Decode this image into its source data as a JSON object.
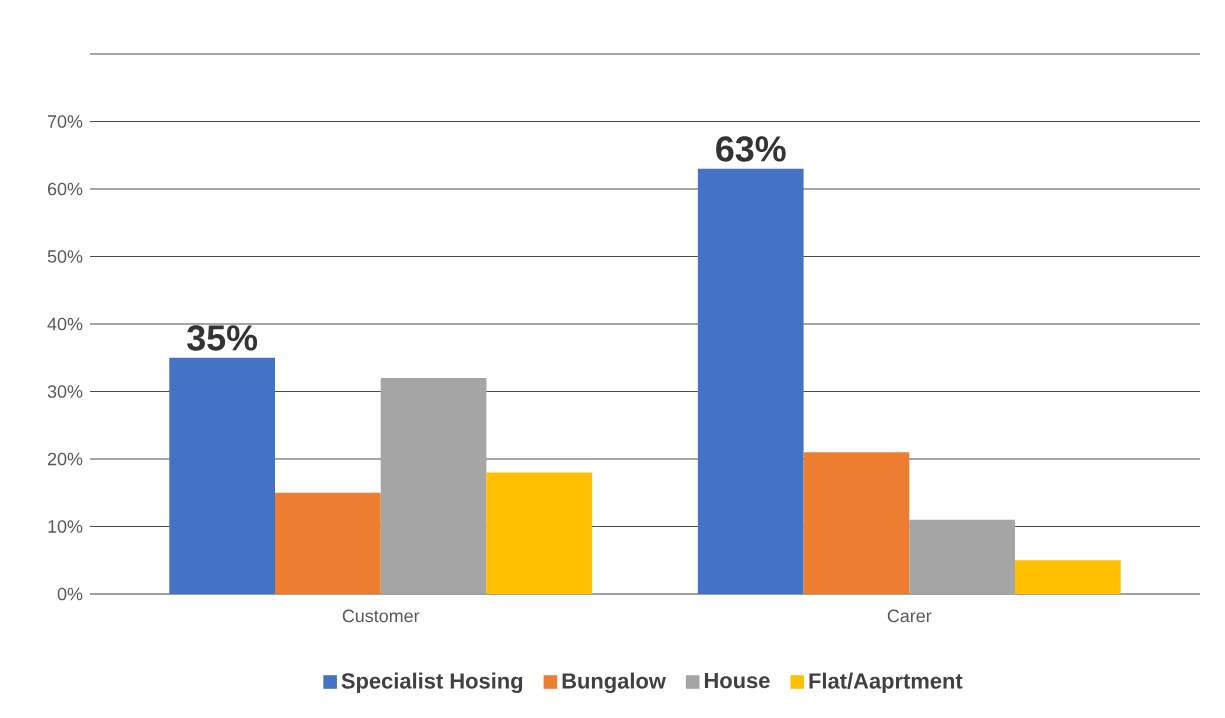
{
  "chart_data": {
    "type": "bar",
    "categories": [
      "Customer",
      "Carer"
    ],
    "series": [
      {
        "name": "Specialist Hosing",
        "color": "#4472c4",
        "values": [
          35,
          63
        ],
        "value_labels": [
          "35%",
          "63%"
        ]
      },
      {
        "name": "Bungalow",
        "color": "#ed7d31",
        "values": [
          15,
          21
        ]
      },
      {
        "name": "House",
        "color": "#a5a5a5",
        "values": [
          32,
          11
        ]
      },
      {
        "name": "Flat/Aaprtment",
        "color": "#ffc000",
        "values": [
          18,
          5
        ]
      }
    ],
    "ylim": [
      0,
      80
    ],
    "yticks": [
      {
        "value": 0,
        "label": "0%"
      },
      {
        "value": 10,
        "label": "10%"
      },
      {
        "value": 20,
        "label": "20%"
      },
      {
        "value": 30,
        "label": "30%"
      },
      {
        "value": 40,
        "label": "40%"
      },
      {
        "value": 50,
        "label": "50%"
      },
      {
        "value": 60,
        "label": "60%"
      },
      {
        "value": 70,
        "label": "70%"
      },
      {
        "value": 80,
        "label": null
      }
    ],
    "grid": "y",
    "legend": "bottom"
  }
}
